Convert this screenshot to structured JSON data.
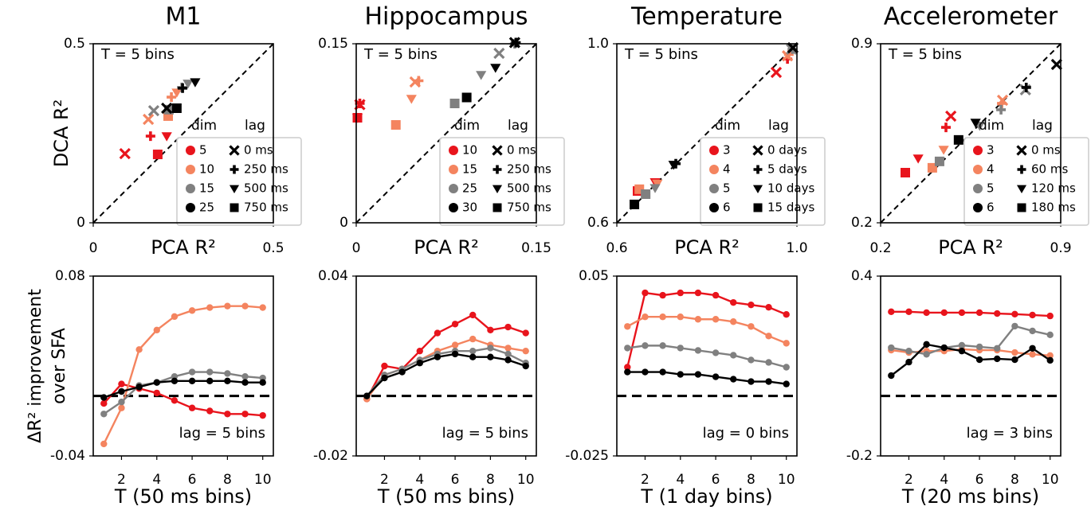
{
  "chart_data": [
    {
      "type": "scatter",
      "title": "M1",
      "annotation": "T = 5 bins",
      "xlabel": "PCA R²",
      "ylabel": "DCA R²",
      "xlim": [
        0,
        0.5
      ],
      "ylim": [
        0,
        0.5
      ],
      "xticks": [
        0,
        0.5
      ],
      "yticks": [
        0,
        0.5
      ],
      "legend": "lower right",
      "dim_title": "dim",
      "lag_title": "lag",
      "lags": [
        {
          "name": "0 ms",
          "marker": "x"
        },
        {
          "name": "250 ms",
          "marker": "plus"
        },
        {
          "name": "500 ms",
          "marker": "triangle"
        },
        {
          "name": "750 ms",
          "marker": "square"
        }
      ],
      "series": [
        {
          "name": "5",
          "color": "#e8141c",
          "x": [
            0.088,
            0.159,
            0.204,
            0.179
          ],
          "values": [
            0.193,
            0.242,
            0.242,
            0.191
          ]
        },
        {
          "name": "10",
          "color": "#f4845f",
          "x": [
            0.153,
            0.217,
            0.232,
            0.208
          ],
          "values": [
            0.289,
            0.351,
            0.364,
            0.298
          ]
        },
        {
          "name": "15",
          "color": "#808080",
          "x": [
            0.168,
            0.246,
            0.263,
            0.21
          ],
          "values": [
            0.313,
            0.378,
            0.389,
            0.316
          ]
        },
        {
          "name": "25",
          "color": "#000000",
          "x": [
            0.204,
            0.248,
            0.283,
            0.232
          ],
          "values": [
            0.32,
            0.376,
            0.393,
            0.32
          ]
        }
      ]
    },
    {
      "type": "scatter",
      "title": "Hippocampus",
      "annotation": "T = 5 bins",
      "xlabel": "PCA R²",
      "xlim": [
        0,
        0.15
      ],
      "ylim": [
        0,
        0.15
      ],
      "xticks": [
        0,
        0.15
      ],
      "yticks": [
        0,
        0.15
      ],
      "legend": "lower right",
      "dim_title": "dim",
      "lag_title": "lag",
      "lags": [
        {
          "name": "0 ms",
          "marker": "x"
        },
        {
          "name": "250 ms",
          "marker": "plus"
        },
        {
          "name": "500 ms",
          "marker": "triangle"
        },
        {
          "name": "750 ms",
          "marker": "square"
        }
      ],
      "series": [
        {
          "name": "10",
          "color": "#e8141c",
          "x": [
            0.003,
            0.003,
            0.001,
            0.001
          ],
          "values": [
            0.099,
            0.1,
            0.088,
            0.088
          ]
        },
        {
          "name": "15",
          "color": "#f4845f",
          "x": [
            0.049,
            0.052,
            0.046,
            0.033
          ],
          "values": [
            0.118,
            0.119,
            0.104,
            0.082
          ]
        },
        {
          "name": "25",
          "color": "#808080",
          "x": [
            0.119,
            0.132,
            0.104,
            0.082
          ],
          "values": [
            0.142,
            0.15,
            0.124,
            0.1
          ]
        },
        {
          "name": "30",
          "color": "#000000",
          "x": [
            0.132,
            0.133,
            0.116,
            0.092
          ],
          "values": [
            0.151,
            0.151,
            0.13,
            0.105
          ]
        }
      ]
    },
    {
      "type": "scatter",
      "title": "Temperature",
      "annotation": "T = 5 bins",
      "xlabel": "PCA R²",
      "xlim": [
        0.6,
        1.0
      ],
      "ylim": [
        0.6,
        1.0
      ],
      "xticks": [
        0.6,
        {
          "value": 1,
          "label": "1.0"
        }
      ],
      "yticks": [
        0.6,
        {
          "value": 1,
          "label": "1.0"
        }
      ],
      "legend": "lower right",
      "dim_title": "dim",
      "lag_title": "lag",
      "lags": [
        {
          "name": "0 days",
          "marker": "x"
        },
        {
          "name": "5 days",
          "marker": "plus"
        },
        {
          "name": "10 days",
          "marker": "triangle"
        },
        {
          "name": "15 days",
          "marker": "square"
        }
      ],
      "series": [
        {
          "name": "3",
          "color": "#e8141c",
          "x": [
            0.954,
            0.979,
            0.685,
            0.646
          ],
          "values": [
            0.936,
            0.966,
            0.691,
            0.671
          ]
        },
        {
          "name": "4",
          "color": "#f4845f",
          "x": [
            0.979,
            0.982,
            0.69,
            0.65
          ],
          "values": [
            0.973,
            0.976,
            0.688,
            0.675
          ]
        },
        {
          "name": "5",
          "color": "#808080",
          "x": [
            0.988,
            0.99,
            0.685,
            0.664
          ],
          "values": [
            0.988,
            0.988,
            0.678,
            0.664
          ]
        },
        {
          "name": "6",
          "color": "#000000",
          "x": [
            0.991,
            0.731,
            0.726,
            0.639
          ],
          "values": [
            0.991,
            0.732,
            0.73,
            0.641
          ]
        }
      ]
    },
    {
      "type": "scatter",
      "title": "Accelerometer",
      "annotation": "T = 5 bins",
      "xlabel": "PCA R²",
      "xlim": [
        0.2,
        0.9
      ],
      "ylim": [
        0.2,
        0.9
      ],
      "xticks": [
        0.2,
        0.9
      ],
      "yticks": [
        0.2,
        0.9
      ],
      "legend": "lower right",
      "dim_title": "dim",
      "lag_title": "lag",
      "lags": [
        {
          "name": "0 ms",
          "marker": "x"
        },
        {
          "name": "60 ms",
          "marker": "plus"
        },
        {
          "name": "120 ms",
          "marker": "triangle"
        },
        {
          "name": "180 ms",
          "marker": "square"
        }
      ],
      "series": [
        {
          "name": "3",
          "color": "#e8141c",
          "x": [
            0.473,
            0.454,
            0.346,
            0.296
          ],
          "values": [
            0.617,
            0.573,
            0.452,
            0.396
          ]
        },
        {
          "name": "4",
          "color": "#f4845f",
          "x": [
            0.674,
            0.671,
            0.445,
            0.401
          ],
          "values": [
            0.679,
            0.667,
            0.486,
            0.415
          ]
        },
        {
          "name": "5",
          "color": "#808080",
          "x": [
            0.763,
            0.668,
            0.585,
            0.429
          ],
          "values": [
            0.72,
            0.642,
            0.58,
            0.44
          ]
        },
        {
          "name": "6",
          "color": "#000000",
          "x": [
            0.884,
            0.766,
            0.569,
            0.503
          ],
          "values": [
            0.819,
            0.729,
            0.592,
            0.524
          ]
        }
      ]
    },
    {
      "type": "line",
      "annotation": "lag = 5 bins",
      "xlabel": "T (50 ms bins)",
      "ylabel": [
        "ΔR² improvement",
        "over SFA"
      ],
      "x": [
        1,
        2,
        3,
        4,
        5,
        6,
        7,
        8,
        9,
        10
      ],
      "xlim": [
        0.4,
        10.6
      ],
      "xticks": [
        2,
        4,
        6,
        8,
        10
      ],
      "ylim": [
        -0.04,
        0.08
      ],
      "yticks": [
        -0.04,
        0.08
      ],
      "hline": 0,
      "series": [
        {
          "color": "#e8141c",
          "values": [
            -0.005,
            0.008,
            0.005,
            0.002,
            -0.003,
            -0.008,
            -0.01,
            -0.012,
            -0.012,
            -0.013
          ]
        },
        {
          "color": "#f4845f",
          "values": [
            -0.032,
            -0.008,
            0.031,
            0.044,
            0.053,
            0.057,
            0.059,
            0.06,
            0.06,
            0.059
          ]
        },
        {
          "color": "#808080",
          "values": [
            -0.012,
            -0.004,
            0.007,
            0.009,
            0.013,
            0.016,
            0.016,
            0.015,
            0.013,
            0.012
          ]
        },
        {
          "color": "#000000",
          "values": [
            -0.001,
            0.003,
            0.006,
            0.009,
            0.01,
            0.01,
            0.01,
            0.01,
            0.009,
            0.009
          ]
        }
      ]
    },
    {
      "type": "line",
      "annotation": "lag = 5 bins",
      "xlabel": "T (50 ms bins)",
      "x": [
        1,
        2,
        3,
        4,
        5,
        6,
        7,
        8,
        9,
        10
      ],
      "xlim": [
        0.4,
        10.6
      ],
      "xticks": [
        2,
        4,
        6,
        8,
        10
      ],
      "ylim": [
        -0.02,
        0.04
      ],
      "yticks": [
        -0.02,
        0.04
      ],
      "hline": 0,
      "series": [
        {
          "color": "#e8141c",
          "values": [
            -0.001,
            0.01,
            0.009,
            0.015,
            0.021,
            0.024,
            0.027,
            0.022,
            0.023,
            0.021
          ]
        },
        {
          "color": "#f4845f",
          "values": [
            -0.001,
            0.007,
            0.009,
            0.012,
            0.015,
            0.017,
            0.019,
            0.017,
            0.016,
            0.015
          ]
        },
        {
          "color": "#808080",
          "values": [
            0,
            0.007,
            0.009,
            0.012,
            0.014,
            0.015,
            0.015,
            0.016,
            0.014,
            0.011
          ]
        },
        {
          "color": "#000000",
          "values": [
            0,
            0.006,
            0.008,
            0.011,
            0.013,
            0.014,
            0.013,
            0.013,
            0.012,
            0.01
          ]
        }
      ]
    },
    {
      "type": "line",
      "annotation": "lag = 0 bins",
      "xlabel": "T (1 day bins)",
      "x": [
        1,
        2,
        3,
        4,
        5,
        6,
        7,
        8,
        9,
        10
      ],
      "xlim": [
        0.4,
        10.6
      ],
      "xticks": [
        2,
        4,
        6,
        8,
        10
      ],
      "ylim": [
        -0.025,
        0.05
      ],
      "yticks": [
        -0.025,
        0.05
      ],
      "hline": 0,
      "series": [
        {
          "color": "#e8141c",
          "values": [
            0.012,
            0.043,
            0.042,
            0.043,
            0.043,
            0.042,
            0.039,
            0.038,
            0.037,
            0.034
          ]
        },
        {
          "color": "#f4845f",
          "values": [
            0.029,
            0.033,
            0.033,
            0.033,
            0.032,
            0.032,
            0.031,
            0.029,
            0.025,
            0.022
          ]
        },
        {
          "color": "#808080",
          "values": [
            0.02,
            0.021,
            0.021,
            0.02,
            0.019,
            0.018,
            0.017,
            0.015,
            0.014,
            0.012
          ]
        },
        {
          "color": "#000000",
          "values": [
            0.01,
            0.01,
            0.01,
            0.009,
            0.009,
            0.008,
            0.007,
            0.006,
            0.006,
            0.005
          ]
        }
      ]
    },
    {
      "type": "line",
      "annotation": "lag = 3 bins",
      "xlabel": "T (20 ms bins)",
      "x": [
        1,
        2,
        3,
        4,
        5,
        6,
        7,
        8,
        9,
        10
      ],
      "xlim": [
        0.4,
        10.6
      ],
      "xticks": [
        2,
        4,
        6,
        8,
        10
      ],
      "ylim": [
        -0.2,
        0.4
      ],
      "yticks": [
        -0.2,
        0.4
      ],
      "hline": 0,
      "series": [
        {
          "color": "#e8141c",
          "values": [
            0.281,
            0.281,
            0.278,
            0.278,
            0.278,
            0.278,
            0.275,
            0.273,
            0.27,
            0.267
          ]
        },
        {
          "color": "#f4845f",
          "values": [
            0.153,
            0.145,
            0.15,
            0.15,
            0.156,
            0.153,
            0.153,
            0.145,
            0.139,
            0.135
          ]
        },
        {
          "color": "#808080",
          "values": [
            0.161,
            0.15,
            0.139,
            0.161,
            0.169,
            0.164,
            0.159,
            0.233,
            0.217,
            0.204
          ]
        },
        {
          "color": "#000000",
          "values": [
            0.068,
            0.113,
            0.172,
            0.161,
            0.15,
            0.121,
            0.124,
            0.121,
            0.159,
            0.119
          ]
        }
      ]
    }
  ]
}
